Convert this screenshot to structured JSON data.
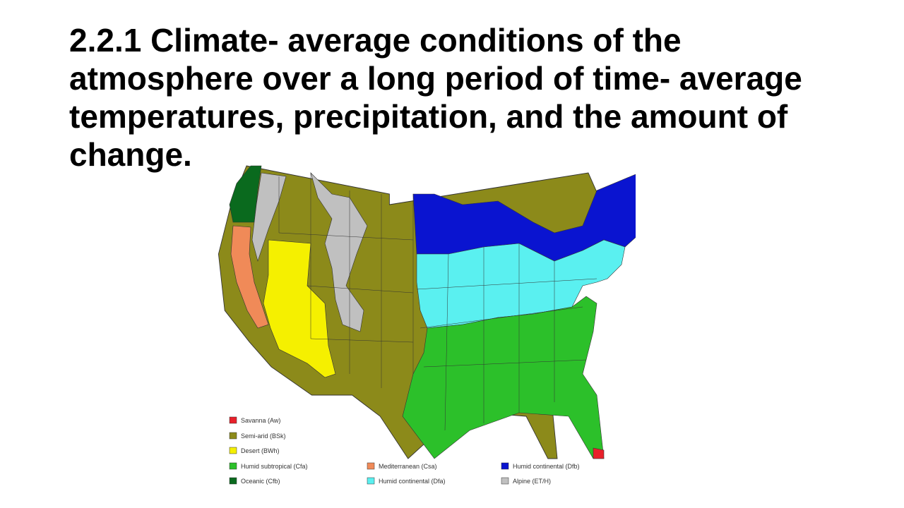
{
  "slide": {
    "title": "2.2.1  Climate- average conditions of the atmosphere over a long period of time- average temperatures, precipitation, and the amount of change."
  },
  "map": {
    "subject": "Climate zones of the contiguous United States",
    "legend": [
      {
        "label": "Savanna (Aw)",
        "color": "#e8202a"
      },
      {
        "label": "Semi-arid (BSk)",
        "color": "#8c8a1a"
      },
      {
        "label": "Desert (BWh)",
        "color": "#f5f000"
      },
      {
        "label": "Humid subtropical (Cfa)",
        "color": "#2cc02a"
      },
      {
        "label": "Oceanic (Cfb)",
        "color": "#0a6a1e"
      },
      {
        "label": "Mediterranean (Csa)",
        "color": "#f08a58"
      },
      {
        "label": "Humid continental (Dfa)",
        "color": "#5af0f0"
      },
      {
        "label": "Humid continental (Dfb)",
        "color": "#0a14d0"
      },
      {
        "label": "Alpine (ET/H)",
        "color": "#c0c0c0"
      }
    ]
  }
}
